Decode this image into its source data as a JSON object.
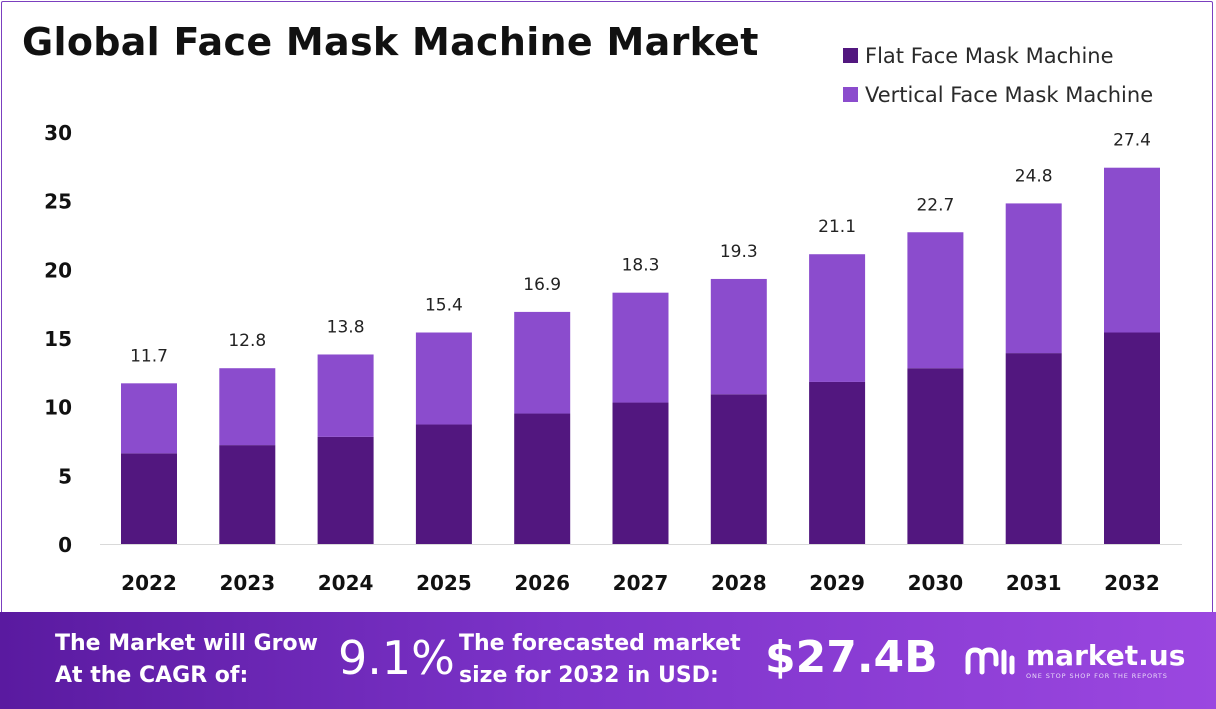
{
  "chart_data": {
    "type": "bar",
    "stacked": true,
    "title": "Global Face Mask Machine Market",
    "categories": [
      "2022",
      "2023",
      "2024",
      "2025",
      "2026",
      "2027",
      "2028",
      "2029",
      "2030",
      "2031",
      "2032"
    ],
    "series": [
      {
        "name": "Flat Face Mask Machine",
        "color": "#52177f",
        "values": [
          6.6,
          7.2,
          7.8,
          8.7,
          9.5,
          10.3,
          10.9,
          11.8,
          12.8,
          13.9,
          15.4
        ]
      },
      {
        "name": "Vertical Face Mask Machine",
        "color": "#8b4ccd",
        "values": [
          5.1,
          5.6,
          6.0,
          6.7,
          7.4,
          8.0,
          8.4,
          9.3,
          9.9,
          10.9,
          12.0
        ]
      }
    ],
    "totals": [
      11.7,
      12.8,
      13.8,
      15.4,
      16.9,
      18.3,
      19.3,
      21.1,
      22.7,
      24.8,
      27.4
    ],
    "total_labels": [
      "11.7",
      "12.8",
      "13.8",
      "15.4",
      "16.9",
      "18.3",
      "19.3",
      "21.1",
      "22.7",
      "24.8",
      "27.4"
    ],
    "y_ticks": [
      0,
      5,
      10,
      15,
      20,
      25,
      30
    ],
    "ylim": [
      0,
      30
    ],
    "grid": false,
    "legend": "top-right"
  },
  "footer": {
    "cagr_text_line1": "The Market will Grow",
    "cagr_text_line2": "At the CAGR of:",
    "cagr_value": "9.1%",
    "forecast_text_line1": "The forecasted market",
    "forecast_text_line2": "size for 2032 in USD:",
    "forecast_value": "$27.4B",
    "brand_name": "market.us",
    "brand_tagline": "ONE STOP SHOP FOR THE REPORTS"
  }
}
